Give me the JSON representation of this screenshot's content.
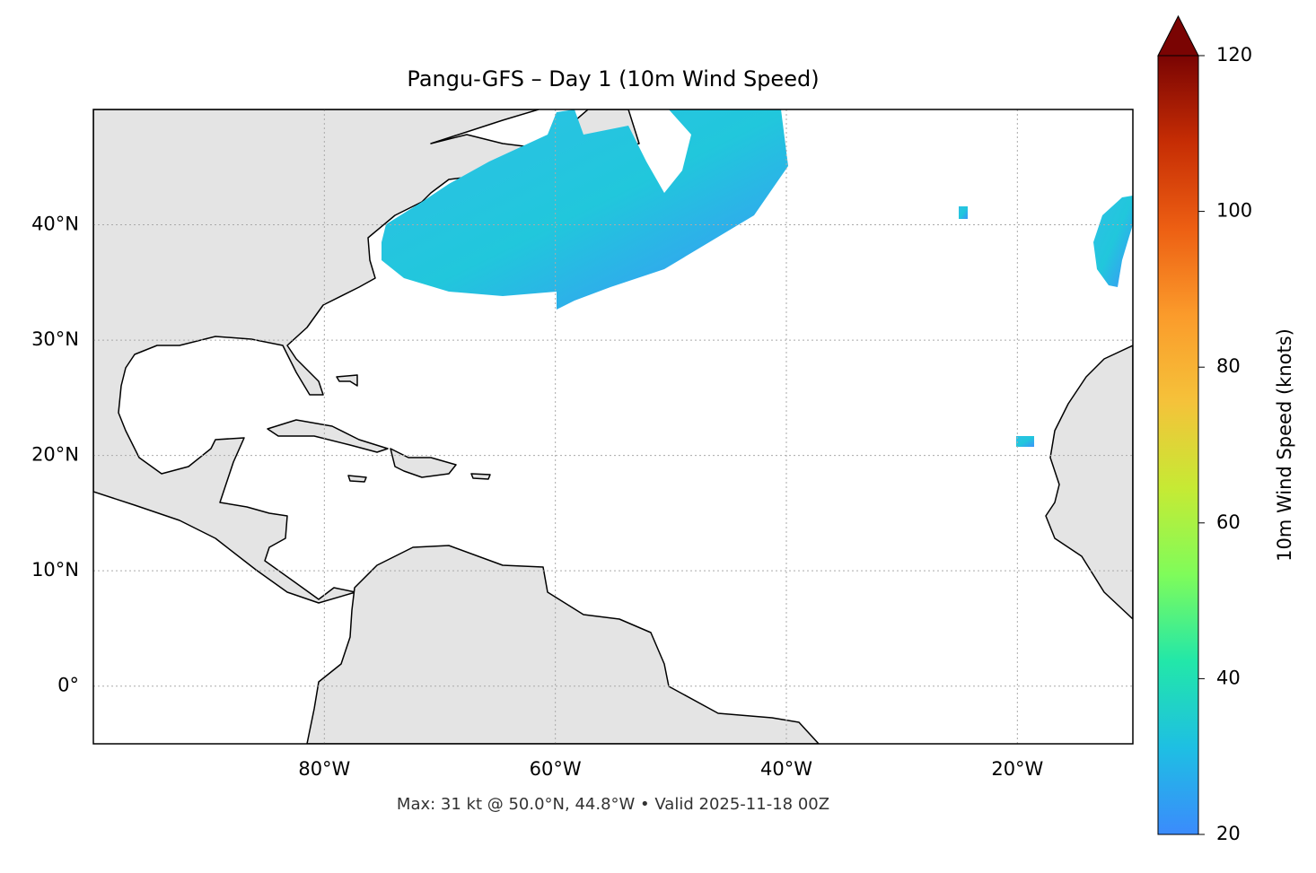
{
  "chart_data": {
    "type": "map",
    "title": "Pangu-GFS – Day 1 (10m Wind Speed)",
    "annotation": "Max: 31 kt @ 50.0°N, 44.8°W • Valid 2025-11-18 00Z",
    "xlim": [
      -100,
      -10
    ],
    "ylim": [
      -5,
      50
    ],
    "xticks": [
      {
        "value": -80,
        "label": "80°W"
      },
      {
        "value": -60,
        "label": "60°W"
      },
      {
        "value": -40,
        "label": "40°W"
      },
      {
        "value": -20,
        "label": "20°W"
      }
    ],
    "yticks": [
      {
        "value": 0,
        "label": "0°"
      },
      {
        "value": 10,
        "label": "10°N"
      },
      {
        "value": 20,
        "label": "20°N"
      },
      {
        "value": 30,
        "label": "30°N"
      },
      {
        "value": 40,
        "label": "40°N"
      }
    ],
    "grid": true,
    "colorbar": {
      "label": "10m Wind Speed (knots)",
      "colormap": "turbo",
      "lim": [
        20,
        120
      ],
      "ticks": [
        20,
        40,
        60,
        80,
        100,
        120
      ],
      "extend": "max"
    }
  }
}
